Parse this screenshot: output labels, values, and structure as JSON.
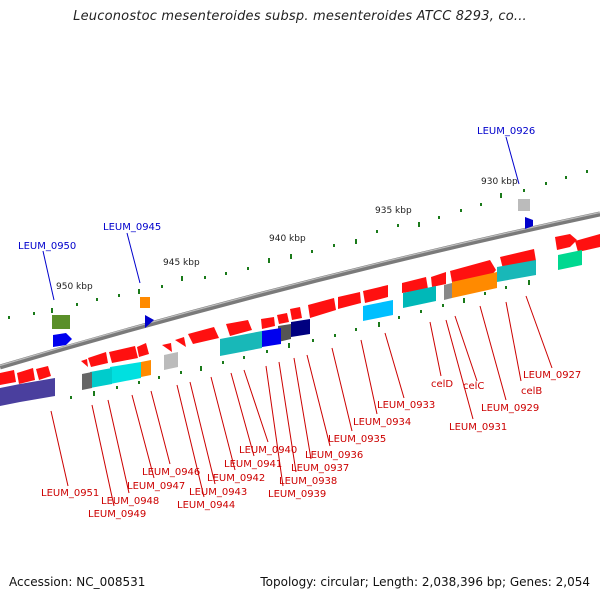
{
  "title": "Leuconostoc mesenteroides subsp. mesenteroides ATCC 8293, co...",
  "footer": {
    "accession": "Accession: NC_008531",
    "summary": "Topology: circular; Length: 2,038,396 bp; Genes: 2,054"
  },
  "colors": {
    "backbone": "#7a7a7a",
    "upper_label": "#0000cc",
    "lower_label": "#cc0000",
    "tick": "#1a7a1a"
  },
  "scale_labels": [
    "930 kbp",
    "935 kbp",
    "940 kbp",
    "945 kbp",
    "950 kbp"
  ],
  "upper_genes": [
    "LEUM_0926",
    "LEUM_0945",
    "LEUM_0950"
  ],
  "lower_genes": [
    "celD",
    "celC",
    "celB",
    "LEUM_0927",
    "LEUM_0929",
    "LEUM_0931",
    "LEUM_0933",
    "LEUM_0934",
    "LEUM_0935",
    "LEUM_0936",
    "LEUM_0937",
    "LEUM_0938",
    "LEUM_0939",
    "LEUM_0940",
    "LEUM_0941",
    "LEUM_0942",
    "LEUM_0943",
    "LEUM_0944",
    "LEUM_0946",
    "LEUM_0947",
    "LEUM_0948",
    "LEUM_0949",
    "LEUM_0951"
  ]
}
